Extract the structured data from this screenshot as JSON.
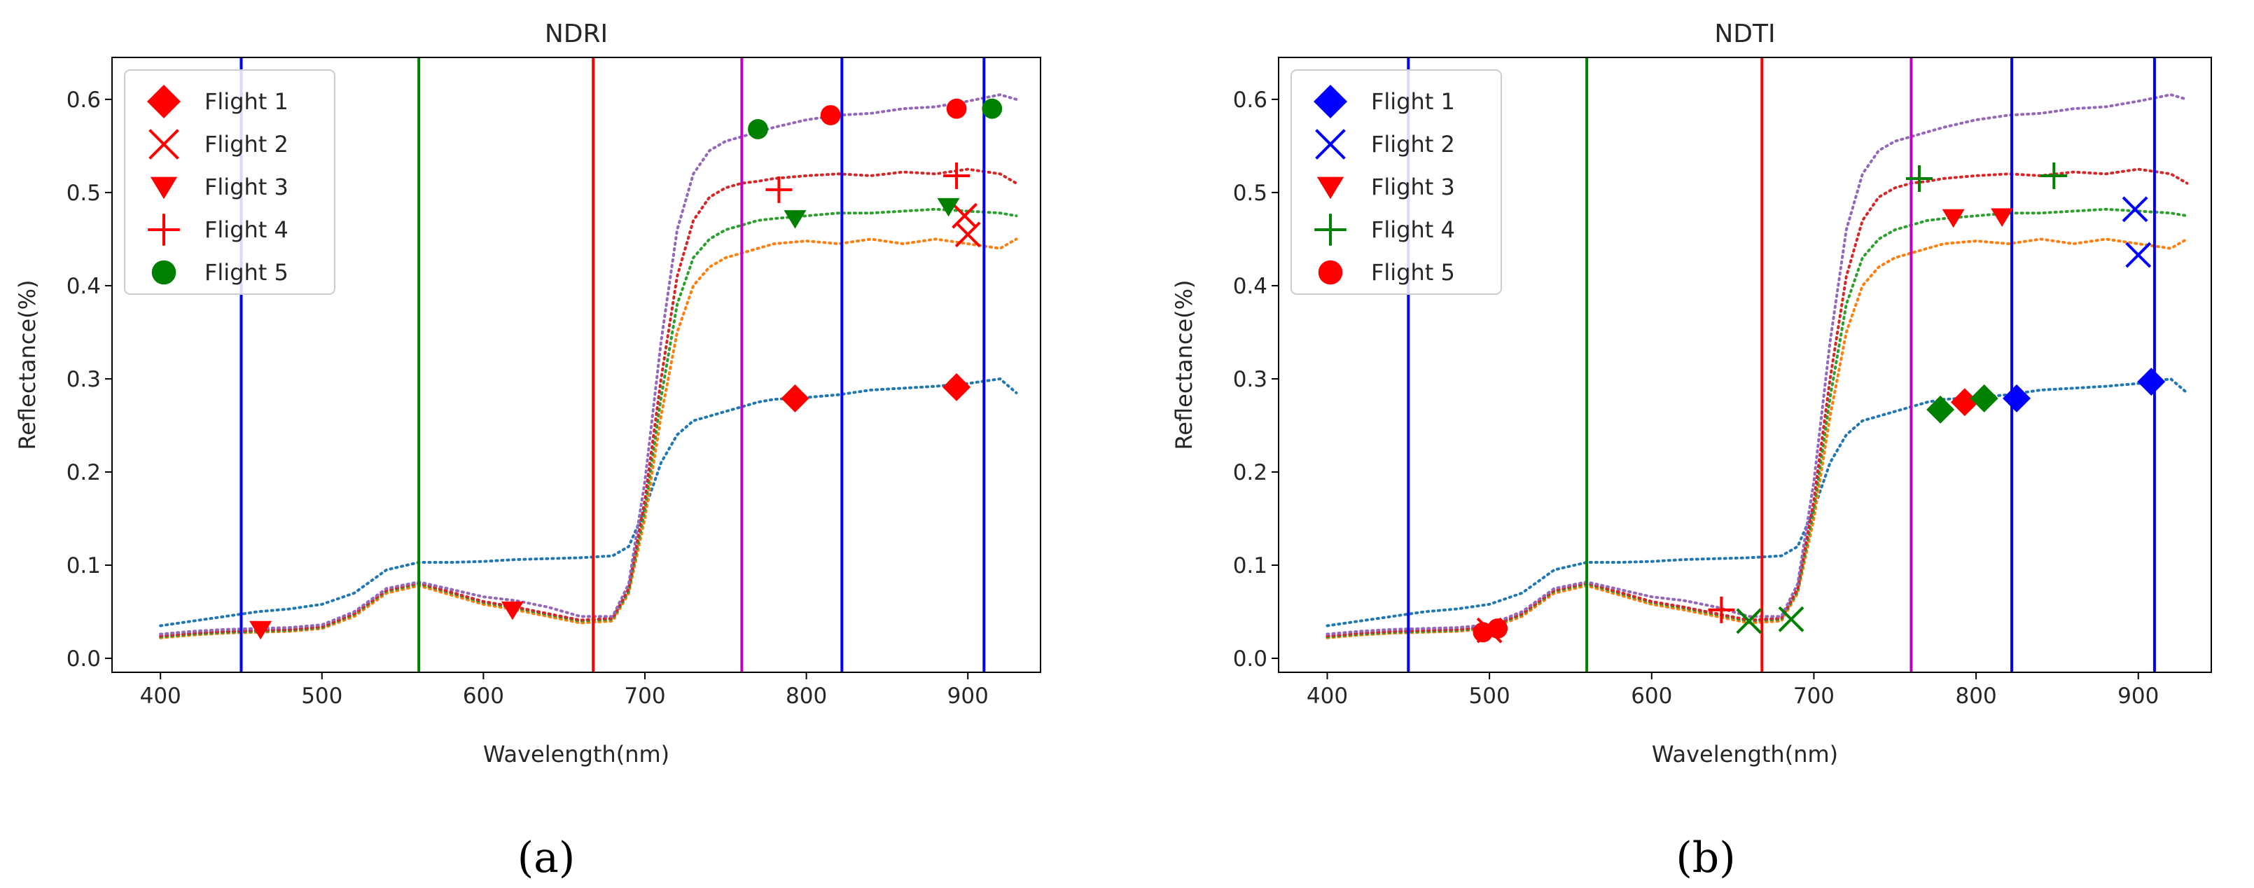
{
  "chart_data": [
    {
      "id": "a",
      "caption": "(a)",
      "type": "line",
      "title": "NDRI",
      "xlabel": "Wavelength(nm)",
      "ylabel": "Reflectance(%)",
      "xlim": [
        370,
        945
      ],
      "ylim": [
        -0.015,
        0.645
      ],
      "xticks": [
        400,
        500,
        600,
        700,
        800,
        900
      ],
      "yticks": [
        0.0,
        0.1,
        0.2,
        0.3,
        0.4,
        0.5,
        0.6
      ],
      "xtick_labels": [
        "400",
        "500",
        "600",
        "700",
        "800",
        "900"
      ],
      "ytick_labels": [
        "0.0",
        "0.1",
        "0.2",
        "0.3",
        "0.4",
        "0.5",
        "0.6"
      ],
      "legend_position": "top-left",
      "vlines": [
        {
          "x": 450,
          "color": "#0000ff"
        },
        {
          "x": 560,
          "color": "#008000"
        },
        {
          "x": 668,
          "color": "#ff0000"
        },
        {
          "x": 760,
          "color": "#bf00bf"
        },
        {
          "x": 822,
          "color": "#0000ff"
        },
        {
          "x": 910,
          "color": "#0000ff"
        }
      ],
      "legend": [
        {
          "label": "Flight 1",
          "marker": "diamond",
          "color": "#ff0000"
        },
        {
          "label": "Flight 2",
          "marker": "x",
          "color": "#ff0000"
        },
        {
          "label": "Flight 3",
          "marker": "triangle-down",
          "color": "#ff0000"
        },
        {
          "label": "Flight 4",
          "marker": "plus",
          "color": "#ff0000"
        },
        {
          "label": "Flight 5",
          "marker": "circle",
          "color": "#008000"
        }
      ],
      "points": [
        {
          "x": 462,
          "y": 0.031,
          "marker": "triangle-down",
          "color": "#ff0000"
        },
        {
          "x": 618,
          "y": 0.052,
          "marker": "triangle-down",
          "color": "#ff0000"
        },
        {
          "x": 793,
          "y": 0.279,
          "marker": "diamond",
          "color": "#ff0000"
        },
        {
          "x": 893,
          "y": 0.291,
          "marker": "diamond",
          "color": "#ff0000"
        },
        {
          "x": 898,
          "y": 0.475,
          "marker": "x",
          "color": "#ff0000"
        },
        {
          "x": 900,
          "y": 0.455,
          "marker": "x",
          "color": "#ff0000"
        },
        {
          "x": 793,
          "y": 0.472,
          "marker": "triangle-down",
          "color": "#008000"
        },
        {
          "x": 888,
          "y": 0.485,
          "marker": "triangle-down",
          "color": "#008000"
        },
        {
          "x": 783,
          "y": 0.503,
          "marker": "plus",
          "color": "#ff0000"
        },
        {
          "x": 893,
          "y": 0.518,
          "marker": "plus",
          "color": "#ff0000"
        },
        {
          "x": 770,
          "y": 0.568,
          "marker": "circle",
          "color": "#008000"
        },
        {
          "x": 815,
          "y": 0.583,
          "marker": "circle",
          "color": "#ff0000"
        },
        {
          "x": 893,
          "y": 0.59,
          "marker": "circle",
          "color": "#ff0000"
        },
        {
          "x": 915,
          "y": 0.59,
          "marker": "circle",
          "color": "#008000"
        }
      ]
    },
    {
      "id": "b",
      "caption": "(b)",
      "type": "line",
      "title": "NDTI",
      "xlabel": "Wavelength(nm)",
      "ylabel": "Reflectance(%)",
      "xlim": [
        370,
        945
      ],
      "ylim": [
        -0.015,
        0.645
      ],
      "xticks": [
        400,
        500,
        600,
        700,
        800,
        900
      ],
      "yticks": [
        0.0,
        0.1,
        0.2,
        0.3,
        0.4,
        0.5,
        0.6
      ],
      "xtick_labels": [
        "400",
        "500",
        "600",
        "700",
        "800",
        "900"
      ],
      "ytick_labels": [
        "0.0",
        "0.1",
        "0.2",
        "0.3",
        "0.4",
        "0.5",
        "0.6"
      ],
      "legend_position": "top-left",
      "vlines": [
        {
          "x": 450,
          "color": "#0000ff"
        },
        {
          "x": 560,
          "color": "#008000"
        },
        {
          "x": 668,
          "color": "#ff0000"
        },
        {
          "x": 760,
          "color": "#bf00bf"
        },
        {
          "x": 822,
          "color": "#0000ff"
        },
        {
          "x": 910,
          "color": "#0000ff"
        }
      ],
      "legend": [
        {
          "label": "Flight 1",
          "marker": "diamond",
          "color": "#0000ff"
        },
        {
          "label": "Flight 2",
          "marker": "x",
          "color": "#0000ff"
        },
        {
          "label": "Flight 3",
          "marker": "triangle-down",
          "color": "#ff0000"
        },
        {
          "label": "Flight 4",
          "marker": "plus",
          "color": "#008000"
        },
        {
          "label": "Flight 5",
          "marker": "circle",
          "color": "#ff0000"
        }
      ],
      "points": [
        {
          "x": 496,
          "y": 0.028,
          "marker": "circle",
          "color": "#ff0000"
        },
        {
          "x": 500,
          "y": 0.03,
          "marker": "x",
          "color": "#ff0000"
        },
        {
          "x": 505,
          "y": 0.032,
          "marker": "circle",
          "color": "#ff0000"
        },
        {
          "x": 643,
          "y": 0.052,
          "marker": "plus",
          "color": "#ff0000"
        },
        {
          "x": 660,
          "y": 0.04,
          "marker": "x",
          "color": "#008000"
        },
        {
          "x": 686,
          "y": 0.042,
          "marker": "x",
          "color": "#008000"
        },
        {
          "x": 778,
          "y": 0.267,
          "marker": "diamond",
          "color": "#008000"
        },
        {
          "x": 793,
          "y": 0.275,
          "marker": "diamond",
          "color": "#ff0000"
        },
        {
          "x": 805,
          "y": 0.279,
          "marker": "diamond",
          "color": "#008000"
        },
        {
          "x": 825,
          "y": 0.279,
          "marker": "diamond",
          "color": "#0000ff"
        },
        {
          "x": 908,
          "y": 0.297,
          "marker": "diamond",
          "color": "#0000ff"
        },
        {
          "x": 786,
          "y": 0.473,
          "marker": "triangle-down",
          "color": "#ff0000"
        },
        {
          "x": 816,
          "y": 0.474,
          "marker": "triangle-down",
          "color": "#ff0000"
        },
        {
          "x": 765,
          "y": 0.515,
          "marker": "plus",
          "color": "#008000"
        },
        {
          "x": 848,
          "y": 0.518,
          "marker": "plus",
          "color": "#008000"
        },
        {
          "x": 898,
          "y": 0.482,
          "marker": "x",
          "color": "#0000ff"
        },
        {
          "x": 900,
          "y": 0.433,
          "marker": "x",
          "color": "#0000ff"
        }
      ]
    }
  ],
  "spectra": [
    {
      "name": "blue",
      "color": "#1f77b4",
      "x": [
        400,
        420,
        440,
        460,
        480,
        500,
        520,
        540,
        560,
        580,
        600,
        620,
        640,
        660,
        680,
        690,
        700,
        710,
        720,
        730,
        740,
        750,
        760,
        770,
        780,
        800,
        820,
        840,
        860,
        880,
        900,
        920,
        930
      ],
      "y": [
        0.035,
        0.04,
        0.045,
        0.05,
        0.053,
        0.058,
        0.07,
        0.095,
        0.103,
        0.103,
        0.104,
        0.106,
        0.107,
        0.108,
        0.11,
        0.12,
        0.16,
        0.21,
        0.24,
        0.255,
        0.26,
        0.265,
        0.27,
        0.275,
        0.278,
        0.28,
        0.283,
        0.288,
        0.29,
        0.292,
        0.295,
        0.3,
        0.285
      ]
    },
    {
      "name": "orange",
      "color": "#ff7f0e",
      "x": [
        400,
        420,
        440,
        460,
        480,
        500,
        520,
        540,
        560,
        580,
        600,
        620,
        640,
        660,
        680,
        690,
        700,
        710,
        720,
        730,
        740,
        750,
        760,
        770,
        780,
        800,
        820,
        840,
        860,
        880,
        900,
        920,
        930
      ],
      "y": [
        0.022,
        0.025,
        0.027,
        0.028,
        0.029,
        0.032,
        0.045,
        0.07,
        0.078,
        0.068,
        0.058,
        0.052,
        0.045,
        0.038,
        0.04,
        0.07,
        0.15,
        0.26,
        0.35,
        0.4,
        0.42,
        0.43,
        0.435,
        0.44,
        0.445,
        0.448,
        0.445,
        0.45,
        0.445,
        0.45,
        0.445,
        0.44,
        0.45
      ]
    },
    {
      "name": "green",
      "color": "#2ca02c",
      "x": [
        400,
        420,
        440,
        460,
        480,
        500,
        520,
        540,
        560,
        580,
        600,
        620,
        640,
        660,
        680,
        690,
        700,
        710,
        720,
        730,
        740,
        750,
        760,
        770,
        780,
        800,
        820,
        840,
        860,
        880,
        900,
        920,
        930
      ],
      "y": [
        0.023,
        0.026,
        0.028,
        0.029,
        0.03,
        0.033,
        0.047,
        0.072,
        0.08,
        0.07,
        0.06,
        0.054,
        0.047,
        0.04,
        0.042,
        0.072,
        0.16,
        0.28,
        0.38,
        0.43,
        0.45,
        0.46,
        0.465,
        0.47,
        0.472,
        0.475,
        0.478,
        0.478,
        0.48,
        0.482,
        0.48,
        0.478,
        0.475
      ]
    },
    {
      "name": "red",
      "color": "#d62728",
      "x": [
        400,
        420,
        440,
        460,
        480,
        500,
        520,
        540,
        560,
        580,
        600,
        620,
        640,
        660,
        680,
        690,
        700,
        710,
        720,
        730,
        740,
        750,
        760,
        770,
        780,
        800,
        820,
        840,
        860,
        880,
        900,
        920,
        930
      ],
      "y": [
        0.024,
        0.027,
        0.029,
        0.03,
        0.031,
        0.034,
        0.048,
        0.073,
        0.081,
        0.071,
        0.061,
        0.055,
        0.048,
        0.041,
        0.043,
        0.075,
        0.17,
        0.3,
        0.41,
        0.47,
        0.495,
        0.505,
        0.51,
        0.512,
        0.515,
        0.518,
        0.52,
        0.518,
        0.522,
        0.52,
        0.525,
        0.52,
        0.51
      ]
    },
    {
      "name": "purple",
      "color": "#9467bd",
      "x": [
        400,
        420,
        440,
        460,
        480,
        500,
        520,
        540,
        560,
        580,
        600,
        620,
        640,
        660,
        680,
        690,
        700,
        710,
        720,
        730,
        740,
        750,
        760,
        770,
        780,
        800,
        820,
        840,
        860,
        880,
        900,
        920,
        930
      ],
      "y": [
        0.026,
        0.029,
        0.031,
        0.032,
        0.033,
        0.036,
        0.05,
        0.075,
        0.082,
        0.074,
        0.066,
        0.062,
        0.055,
        0.045,
        0.045,
        0.08,
        0.19,
        0.34,
        0.46,
        0.52,
        0.545,
        0.555,
        0.56,
        0.565,
        0.57,
        0.578,
        0.583,
        0.585,
        0.59,
        0.592,
        0.598,
        0.605,
        0.6
      ]
    }
  ]
}
